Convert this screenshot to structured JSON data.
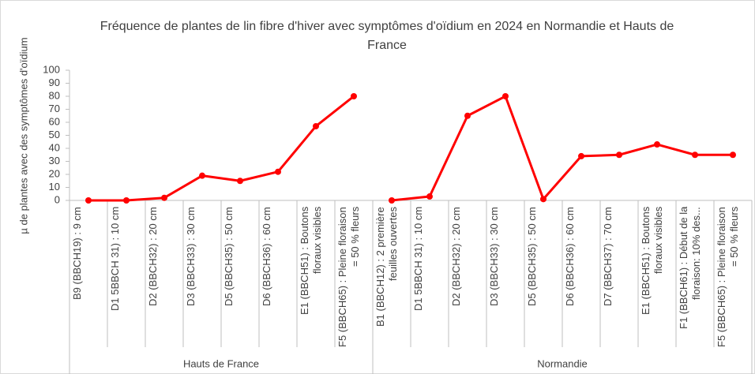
{
  "chart_data": {
    "type": "line",
    "title": "Fréquence de plantes de lin fibre d'hiver avec symptômes d'oïdium en 2024 en Normandie et Hauts de France",
    "y_label": "µ de plantes avec des symptômes d'oïdium",
    "color": "#ff0000",
    "ylim": [
      0,
      100
    ],
    "yticks": [
      0,
      10,
      20,
      30,
      40,
      50,
      60,
      70,
      80,
      90,
      100
    ],
    "groups": [
      {
        "name": "Hauts de France",
        "categories": [
          "B9 (BBCH19) : 9 cm",
          "D1 5BBCH 31) : 10 cm",
          "D2 (BBCH32) : 20 cm",
          "D3 (BBCH33) : 30 cm",
          "D5 (BBCH35) : 50 cm",
          "D6 (BBCH36) : 60 cm",
          "E1 (BBCH51) : Boutons floraux visibles",
          "F5 (BBCH65) : Pleine floraison = 50 % fleurs"
        ],
        "values": [
          0,
          0,
          2,
          19,
          15,
          22,
          57,
          80
        ]
      },
      {
        "name": "Normandie",
        "categories": [
          "B1 (BBCH12) : 2 première feuilles ouvertes",
          "D1 5BBCH 31) : 10 cm",
          "D2 (BBCH32) : 20 cm",
          "D3 (BBCH33) : 30 cm",
          "D5 (BBCH35) : 50 cm",
          "D6 (BBCH36) : 60 cm",
          "D7 (BBCH37) : 70 cm",
          "E1 (BBCH51) : Boutons floraux visibles",
          "F1 (BBCH61) : Début de la floraison: 10% des...",
          "F5 (BBCH65) : Pleine floraison = 50 % fleurs"
        ],
        "values": [
          0,
          3,
          65,
          80,
          1,
          34,
          35,
          43,
          35,
          35
        ]
      }
    ]
  }
}
